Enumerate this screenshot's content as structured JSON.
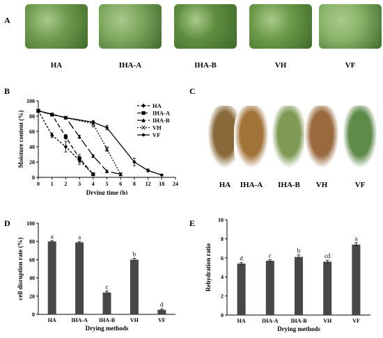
{
  "panels": {
    "A": {
      "letter": "A",
      "images": [
        {
          "label": "HA",
          "color": "#6f9b4f"
        },
        {
          "label": "IHA-A",
          "color": "#7fa860"
        },
        {
          "label": "IHA-B",
          "color": "#5f8d3f"
        },
        {
          "label": "VH",
          "color": "#6b9a48"
        },
        {
          "label": "VF",
          "color": "#8ab46a"
        }
      ]
    },
    "C": {
      "letter": "C",
      "images": [
        {
          "label": "HA",
          "color": "#8a6a3a"
        },
        {
          "label": "IHA-A",
          "color": "#a3743a"
        },
        {
          "label": "IHA-B",
          "color": "#7f9a55"
        },
        {
          "label": "VH",
          "color": "#9a6a3e"
        },
        {
          "label": "VF",
          "color": "#5e8a4a"
        }
      ]
    }
  },
  "chart_data": [
    {
      "panel": "B",
      "type": "line",
      "xlabel": "Drying time (h)",
      "ylabel": "Moisture content (%)",
      "x_ticks": [
        "0",
        "1",
        "2",
        "3",
        "4",
        "5",
        "6",
        "8",
        "12",
        "18",
        "24"
      ],
      "ylim": [
        0,
        100
      ],
      "y_ticks": [
        0,
        20,
        40,
        60,
        80,
        100
      ],
      "legend_position": "top-right",
      "series": [
        {
          "name": "HA",
          "dash": "3,2",
          "marker": "diamond",
          "x": [
            "0",
            "1",
            "2",
            "3",
            "4"
          ],
          "y": [
            87,
            55,
            40,
            22,
            4
          ],
          "err": [
            0,
            3,
            7,
            5,
            1
          ]
        },
        {
          "name": "IHA-A",
          "dash": "6,3",
          "marker": "square",
          "x": [
            "0",
            "1",
            "2",
            "3",
            "4"
          ],
          "y": [
            87,
            82,
            53,
            25,
            4
          ],
          "err": [
            0,
            1,
            3,
            5,
            1
          ]
        },
        {
          "name": "IHA-B",
          "dash": "12,4",
          "marker": "triangle",
          "x": [
            "0",
            "1",
            "2",
            "3",
            "4",
            "5",
            "6"
          ],
          "y": [
            87,
            82,
            78,
            53,
            28,
            8,
            4
          ],
          "err": [
            0,
            1,
            1,
            2,
            1,
            1,
            1
          ]
        },
        {
          "name": "VH",
          "dash": "2,2",
          "marker": "x",
          "x": [
            "0",
            "2",
            "4",
            "5",
            "6"
          ],
          "y": [
            87,
            78,
            70,
            37,
            4
          ],
          "err": [
            0,
            1,
            4,
            3,
            1
          ]
        },
        {
          "name": "VF",
          "dash": "",
          "marker": "circle",
          "x": [
            "0",
            "2",
            "4",
            "5",
            "8",
            "12",
            "18"
          ],
          "y": [
            87,
            78,
            72,
            65,
            20,
            9,
            3
          ],
          "err": [
            0,
            1,
            2,
            3,
            5,
            2,
            1
          ]
        }
      ]
    },
    {
      "panel": "D",
      "type": "bar",
      "categories": [
        "HA",
        "IHA-A",
        "IHA-B",
        "VH",
        "VF"
      ],
      "values": [
        80,
        79,
        24,
        60,
        5
      ],
      "errors": [
        1,
        1,
        1.5,
        1.5,
        1
      ],
      "letters": [
        "a",
        "a",
        "c",
        "b",
        "d"
      ],
      "xlabel": "Drying methods",
      "ylabel": "cell disruption rate (%)",
      "ylim": [
        0,
        100
      ],
      "y_ticks": [
        0,
        20,
        40,
        60,
        80,
        100
      ]
    },
    {
      "panel": "E",
      "type": "bar",
      "categories": [
        "HA",
        "IHA-A",
        "IHA-B",
        "VH",
        "VF"
      ],
      "values": [
        5.4,
        5.7,
        6.1,
        5.6,
        7.4
      ],
      "errors": [
        0.1,
        0.1,
        0.2,
        0.15,
        0.2
      ],
      "letters": [
        "d",
        "c",
        "b",
        "cd",
        "a"
      ],
      "xlabel": "Drying methods",
      "ylabel": "Rehydration ratio",
      "ylim": [
        0,
        10
      ],
      "y_ticks": [
        0,
        2,
        4,
        6,
        8,
        10
      ]
    }
  ],
  "panel_letters": {
    "B": "B",
    "D": "D",
    "E": "E"
  }
}
